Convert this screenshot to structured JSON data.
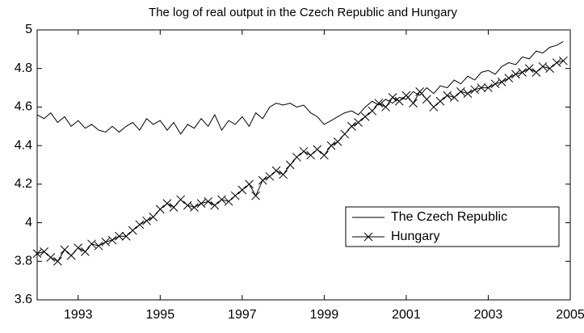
{
  "chart_data": {
    "type": "line",
    "title": "The log of real output in the Czech Republic and Hungary",
    "x": [
      1992,
      1992.17,
      1992.33,
      1992.5,
      1992.67,
      1992.83,
      1993,
      1993.17,
      1993.33,
      1993.5,
      1993.67,
      1993.83,
      1994,
      1994.17,
      1994.33,
      1994.5,
      1994.67,
      1994.83,
      1995,
      1995.17,
      1995.33,
      1995.5,
      1995.67,
      1995.83,
      1996,
      1996.17,
      1996.33,
      1996.5,
      1996.67,
      1996.83,
      1997,
      1997.17,
      1997.33,
      1997.5,
      1997.67,
      1997.83,
      1998,
      1998.17,
      1998.33,
      1998.5,
      1998.67,
      1998.83,
      1999,
      1999.17,
      1999.33,
      1999.5,
      1999.67,
      1999.83,
      2000,
      2000.17,
      2000.33,
      2000.5,
      2000.67,
      2000.83,
      2001,
      2001.17,
      2001.33,
      2001.5,
      2001.67,
      2001.83,
      2002,
      2002.17,
      2002.33,
      2002.5,
      2002.67,
      2002.83,
      2003,
      2003.17,
      2003.33,
      2003.5,
      2003.67,
      2003.83,
      2004,
      2004.17,
      2004.33,
      2004.5,
      2004.67,
      2004.83
    ],
    "series": [
      {
        "name": "The Czech Republic",
        "color": "#000000",
        "marker": "none",
        "values": [
          4.56,
          4.54,
          4.57,
          4.52,
          4.55,
          4.5,
          4.53,
          4.49,
          4.51,
          4.48,
          4.47,
          4.5,
          4.47,
          4.5,
          4.52,
          4.48,
          4.54,
          4.51,
          4.53,
          4.48,
          4.52,
          4.46,
          4.51,
          4.49,
          4.54,
          4.5,
          4.56,
          4.48,
          4.53,
          4.51,
          4.55,
          4.5,
          4.57,
          4.54,
          4.6,
          4.62,
          4.61,
          4.62,
          4.6,
          4.61,
          4.57,
          4.55,
          4.51,
          4.53,
          4.55,
          4.57,
          4.58,
          4.56,
          4.6,
          4.63,
          4.61,
          4.64,
          4.62,
          4.65,
          4.64,
          4.68,
          4.66,
          4.7,
          4.67,
          4.71,
          4.7,
          4.74,
          4.72,
          4.76,
          4.74,
          4.78,
          4.79,
          4.77,
          4.81,
          4.83,
          4.82,
          4.86,
          4.85,
          4.89,
          4.88,
          4.91,
          4.92,
          4.94
        ]
      },
      {
        "name": "Hungary",
        "color": "#000000",
        "marker": "x",
        "values": [
          3.84,
          3.85,
          3.82,
          3.8,
          3.86,
          3.83,
          3.87,
          3.85,
          3.89,
          3.88,
          3.9,
          3.91,
          3.93,
          3.93,
          3.96,
          3.99,
          4.01,
          4.03,
          4.07,
          4.1,
          4.08,
          4.12,
          4.09,
          4.08,
          4.1,
          4.11,
          4.09,
          4.12,
          4.11,
          4.14,
          4.17,
          4.2,
          4.14,
          4.22,
          4.24,
          4.27,
          4.25,
          4.3,
          4.34,
          4.37,
          4.35,
          4.38,
          4.35,
          4.4,
          4.42,
          4.46,
          4.5,
          4.52,
          4.55,
          4.58,
          4.62,
          4.6,
          4.65,
          4.63,
          4.66,
          4.62,
          4.68,
          4.64,
          4.6,
          4.63,
          4.66,
          4.65,
          4.68,
          4.67,
          4.69,
          4.7,
          4.7,
          4.72,
          4.73,
          4.75,
          4.77,
          4.78,
          4.8,
          4.78,
          4.81,
          4.8,
          4.83,
          4.84
        ]
      }
    ],
    "xlim": [
      1992,
      2005
    ],
    "xticks": [
      1993,
      1995,
      1997,
      1999,
      2001,
      2003,
      2005
    ],
    "ylim": [
      3.6,
      5
    ],
    "yticks": [
      3.6,
      3.8,
      4,
      4.2,
      4.4,
      4.6,
      4.8,
      5
    ],
    "grid": false,
    "legend": "right"
  }
}
